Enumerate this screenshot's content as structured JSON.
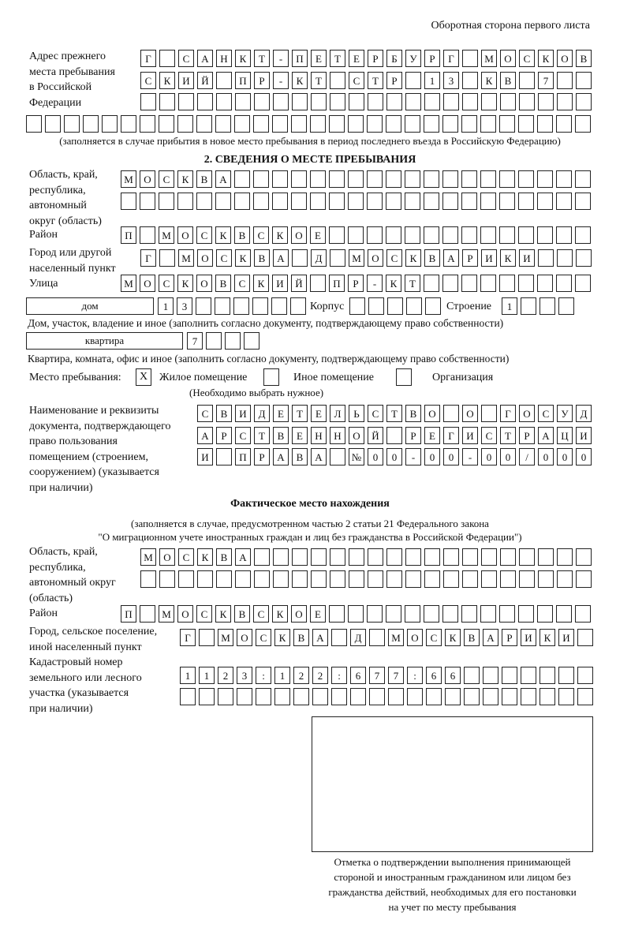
{
  "header": "Оборотная сторона первого листа",
  "prev": {
    "label": [
      "Адрес прежнего",
      "места пребывания",
      "в Российской",
      "Федерации"
    ],
    "rows": [
      [
        "Г",
        "",
        "С",
        "А",
        "Н",
        "К",
        "Т",
        "-",
        "П",
        "Е",
        "Т",
        "Е",
        "Р",
        "Б",
        "У",
        "Р",
        "Г",
        "",
        "М",
        "О",
        "С",
        "К",
        "О",
        "В"
      ],
      [
        "С",
        "К",
        "И",
        "Й",
        "",
        "П",
        "Р",
        "-",
        "К",
        "Т",
        "",
        "С",
        "Т",
        "Р",
        "",
        "1",
        "3",
        "",
        "К",
        "В",
        "",
        "7",
        "",
        ""
      ],
      [
        "",
        "",
        "",
        "",
        "",
        "",
        "",
        "",
        "",
        "",
        "",
        "",
        "",
        "",
        "",
        "",
        "",
        "",
        "",
        "",
        "",
        "",
        "",
        ""
      ],
      [
        "",
        "",
        "",
        "",
        "",
        "",
        "",
        "",
        "",
        "",
        "",
        "",
        "",
        "",
        "",
        "",
        "",
        "",
        "",
        "",
        "",
        "",
        "",
        "",
        "",
        "",
        "",
        "",
        "",
        ""
      ]
    ],
    "note": "(заполняется в случае прибытия в новое место пребывания в период последнего въезда в Российскую Федерацию)"
  },
  "section2": {
    "title": "2. СВЕДЕНИЯ О МЕСТЕ ПРЕБЫВАНИЯ",
    "region_label": [
      "Область, край,",
      "республика,",
      "автономный",
      "округ (область)"
    ],
    "region_rows": [
      [
        "М",
        "О",
        "С",
        "К",
        "В",
        "А",
        "",
        "",
        "",
        "",
        "",
        "",
        "",
        "",
        "",
        "",
        "",
        "",
        "",
        "",
        "",
        "",
        "",
        "",
        ""
      ],
      [
        "",
        "",
        "",
        "",
        "",
        "",
        "",
        "",
        "",
        "",
        "",
        "",
        "",
        "",
        "",
        "",
        "",
        "",
        "",
        "",
        "",
        "",
        "",
        "",
        ""
      ]
    ],
    "district_label": "Район",
    "district_row": [
      "П",
      "",
      "М",
      "О",
      "С",
      "К",
      "В",
      "С",
      "К",
      "О",
      "Е",
      "",
      "",
      "",
      "",
      "",
      "",
      "",
      "",
      "",
      "",
      "",
      "",
      "",
      ""
    ],
    "city_label": [
      "Город или другой",
      "населенный пункт"
    ],
    "city_row": [
      "Г",
      "",
      "М",
      "О",
      "С",
      "К",
      "В",
      "А",
      "",
      "Д",
      "",
      "М",
      "О",
      "С",
      "К",
      "В",
      "А",
      "Р",
      "И",
      "К",
      "И",
      "",
      "",
      ""
    ],
    "street_label": "Улица",
    "street_row": [
      "М",
      "О",
      "С",
      "К",
      "О",
      "В",
      "С",
      "К",
      "И",
      "Й",
      "",
      "П",
      "Р",
      "-",
      "К",
      "Т",
      "",
      "",
      "",
      "",
      "",
      "",
      "",
      "",
      ""
    ],
    "house_type": "дом",
    "house_cells": [
      "1",
      "3",
      "",
      "",
      "",
      "",
      "",
      ""
    ],
    "korpus_label": "Корпус",
    "korpus_cells": [
      "",
      "",
      "",
      "",
      ""
    ],
    "building_label": "Строение",
    "building_cells": [
      "1",
      "",
      "",
      ""
    ],
    "house_note": "Дом, участок, владение и иное (заполнить согласно документу, подтверждающему право собственности)",
    "apt_type": "квартира",
    "apt_cells": [
      "7",
      "",
      "",
      ""
    ],
    "apt_note": "Квартира, комната, офис и иное (заполнить согласно документу, подтверждающему право собственности)",
    "stay_label": "Место пребывания:",
    "stay_options": [
      {
        "label": "Жилое помещение",
        "mark": "X"
      },
      {
        "label": "Иное помещение",
        "mark": ""
      },
      {
        "label": "Организация",
        "mark": ""
      }
    ],
    "stay_note": "(Необходимо выбрать нужное)",
    "doc_label": [
      "Наименование и реквизиты",
      "документа, подтверждающего",
      "право пользования",
      "помещением (строением,",
      "сооружением) (указывается",
      "при наличии)"
    ],
    "doc_rows": [
      [
        "С",
        "В",
        "И",
        "Д",
        "Е",
        "Т",
        "Е",
        "Л",
        "Ь",
        "С",
        "Т",
        "В",
        "О",
        "",
        "О",
        "",
        "Г",
        "О",
        "С",
        "У",
        "Д"
      ],
      [
        "А",
        "Р",
        "С",
        "Т",
        "В",
        "Е",
        "Н",
        "Н",
        "О",
        "Й",
        "",
        "Р",
        "Е",
        "Г",
        "И",
        "С",
        "Т",
        "Р",
        "А",
        "Ц",
        "И"
      ],
      [
        "И",
        "",
        "П",
        "Р",
        "А",
        "В",
        "А",
        "",
        "№",
        "0",
        "0",
        "-",
        "0",
        "0",
        "-",
        "0",
        "0",
        "/",
        "0",
        "0",
        "0"
      ]
    ]
  },
  "actual": {
    "title": "Фактическое место нахождения",
    "note": [
      "(заполняется в случае, предусмотренном частью 2 статьи 21 Федерального закона",
      "\"О миграционном учете иностранных граждан и лиц без гражданства в Российской Федерации\")"
    ],
    "region_label": [
      "Область, край,",
      "республика,",
      "автономный округ",
      "(область)"
    ],
    "region_rows": [
      [
        "М",
        "О",
        "С",
        "К",
        "В",
        "А",
        "",
        "",
        "",
        "",
        "",
        "",
        "",
        "",
        "",
        "",
        "",
        "",
        "",
        "",
        "",
        "",
        "",
        ""
      ],
      [
        "",
        "",
        "",
        "",
        "",
        "",
        "",
        "",
        "",
        "",
        "",
        "",
        "",
        "",
        "",
        "",
        "",
        "",
        "",
        "",
        "",
        "",
        "",
        ""
      ]
    ],
    "district_label": "Район",
    "district_row": [
      "П",
      "",
      "М",
      "О",
      "С",
      "К",
      "В",
      "С",
      "К",
      "О",
      "Е",
      "",
      "",
      "",
      "",
      "",
      "",
      "",
      "",
      "",
      "",
      "",
      "",
      "",
      ""
    ],
    "city_label": [
      "Город, сельское поселение,",
      "иной населенный пункт"
    ],
    "city_row": [
      "Г",
      "",
      "М",
      "О",
      "С",
      "К",
      "В",
      "А",
      "",
      "Д",
      "",
      "М",
      "О",
      "С",
      "К",
      "В",
      "А",
      "Р",
      "И",
      "К",
      "И",
      ""
    ],
    "cadastral_label": [
      "Кадастровый номер",
      "земельного или лесного",
      "участка (указывается",
      "при наличии)"
    ],
    "cadastral_rows": [
      [
        "1",
        "1",
        "2",
        "3",
        ":",
        "1",
        "2",
        "2",
        ":",
        "6",
        "7",
        "7",
        ":",
        "6",
        "6",
        "",
        "",
        "",
        "",
        "",
        "",
        ""
      ],
      [
        "",
        "",
        "",
        "",
        "",
        "",
        "",
        "",
        "",
        "",
        "",
        "",
        "",
        "",
        "",
        "",
        "",
        "",
        "",
        "",
        "",
        ""
      ]
    ],
    "stamp_caption": [
      "Отметка о подтверждении выполнения принимающей",
      "стороной и иностранным гражданином или лицом без",
      "гражданства действий, необходимых для его постановки",
      "на учет по месту пребывания"
    ]
  }
}
